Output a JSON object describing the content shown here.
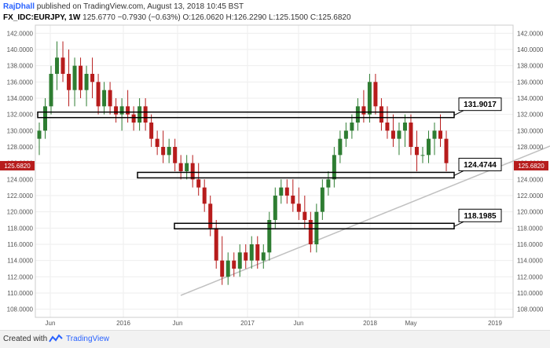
{
  "header": {
    "author": "RajDhall",
    "published": "published on TradingView.com, August 13, 2018 10:45 BST",
    "symbol": "FX_IDC:EURJPY, 1W",
    "price": "125.6770",
    "change": "−0.7930 (−0.63%)",
    "ohlc": "O:126.0620 H:126.2290 L:125.1500 C:125.6820"
  },
  "footer": {
    "created_with": "Created with",
    "brand": "TradingView"
  },
  "colors": {
    "up": "#2e7d32",
    "down": "#b71c1c",
    "trendline": "#c0c0c0",
    "price_tag": "#b71c1c",
    "grid": "#eeeeee"
  },
  "chart_data": {
    "type": "candlestick",
    "ylim": [
      107,
      143
    ],
    "y_ticks": [
      "142.0000",
      "140.0000",
      "138.0000",
      "136.0000",
      "134.0000",
      "132.0000",
      "130.0000",
      "128.0000",
      "126.0000",
      "124.0000",
      "122.0000",
      "120.0000",
      "118.0000",
      "116.0000",
      "114.0000",
      "112.0000",
      "110.0000",
      "108.0000"
    ],
    "x_ticks": [
      "Jun",
      "2016",
      "Jun",
      "2017",
      "Jun",
      "2018",
      "May",
      "2019"
    ],
    "current_price": "125.6820",
    "levels": [
      {
        "label": "131.9017",
        "value": 131.9017
      },
      {
        "label": "124.4744",
        "value": 124.4744
      },
      {
        "label": "118.1985",
        "value": 118.1985
      }
    ],
    "trendline": {
      "start": 109.7,
      "end": 125.0
    },
    "series": [
      {
        "values": [
          [
            129,
            131,
            127,
            130
          ],
          [
            130,
            134,
            129,
            133
          ],
          [
            133,
            138,
            132,
            137
          ],
          [
            137,
            141,
            135,
            139
          ],
          [
            139,
            141,
            136,
            137
          ],
          [
            137,
            140,
            133,
            135
          ],
          [
            135,
            139,
            133,
            138
          ],
          [
            138,
            139,
            134,
            135
          ],
          [
            135,
            138,
            133,
            137
          ],
          [
            137,
            139,
            134,
            136
          ],
          [
            136,
            137,
            132,
            133
          ],
          [
            133,
            136,
            132,
            135
          ],
          [
            135,
            136,
            132,
            133
          ],
          [
            133,
            134,
            131,
            132
          ],
          [
            132,
            134,
            130,
            133
          ],
          [
            133,
            135,
            131,
            132
          ],
          [
            132,
            133,
            130,
            131
          ],
          [
            131,
            134,
            130,
            133
          ],
          [
            133,
            134,
            130,
            131
          ],
          [
            131,
            132,
            128,
            129
          ],
          [
            129,
            130,
            127,
            128
          ],
          [
            128,
            130,
            126,
            127
          ],
          [
            127,
            129,
            126,
            128
          ],
          [
            128,
            129,
            125,
            126
          ],
          [
            126,
            127,
            124,
            125
          ],
          [
            125,
            127,
            124,
            126
          ],
          [
            126,
            127,
            123,
            124
          ],
          [
            124,
            126,
            122,
            123
          ],
          [
            123,
            124,
            120,
            121
          ],
          [
            121,
            122,
            117,
            118
          ],
          [
            118,
            119,
            113,
            114
          ],
          [
            114,
            117,
            111,
            112
          ],
          [
            112,
            115,
            111,
            114
          ],
          [
            114,
            115,
            112,
            113
          ],
          [
            113,
            116,
            112,
            115
          ],
          [
            115,
            116,
            113,
            114
          ],
          [
            114,
            117,
            113,
            116
          ],
          [
            116,
            117,
            113,
            114
          ],
          [
            114,
            116,
            113,
            115
          ],
          [
            115,
            120,
            114,
            119
          ],
          [
            119,
            123,
            118,
            122
          ],
          [
            122,
            124,
            121,
            123
          ],
          [
            123,
            124,
            121,
            122
          ],
          [
            122,
            124,
            120,
            121
          ],
          [
            121,
            123,
            119,
            120
          ],
          [
            120,
            122,
            118,
            119
          ],
          [
            119,
            120,
            115,
            116
          ],
          [
            116,
            121,
            115,
            120
          ],
          [
            120,
            124,
            119,
            123
          ],
          [
            123,
            125,
            122,
            124
          ],
          [
            124,
            128,
            123,
            127
          ],
          [
            127,
            130,
            126,
            129
          ],
          [
            129,
            131,
            128,
            130
          ],
          [
            130,
            132,
            129,
            131
          ],
          [
            131,
            134,
            130,
            133
          ],
          [
            133,
            135,
            131,
            132
          ],
          [
            132,
            137,
            131,
            136
          ],
          [
            136,
            137,
            132,
            133
          ],
          [
            133,
            134,
            130,
            131
          ],
          [
            131,
            133,
            129,
            130
          ],
          [
            130,
            132,
            128,
            129
          ],
          [
            129,
            131,
            127,
            130
          ],
          [
            130,
            132,
            128,
            131
          ],
          [
            131,
            132,
            127,
            128
          ],
          [
            128,
            130,
            125,
            127
          ],
          [
            127,
            128,
            126,
            127
          ],
          [
            127,
            130,
            126,
            129
          ],
          [
            129,
            131,
            127,
            130
          ],
          [
            130,
            132,
            128,
            129
          ],
          [
            129,
            130,
            125,
            126
          ]
        ]
      }
    ]
  }
}
